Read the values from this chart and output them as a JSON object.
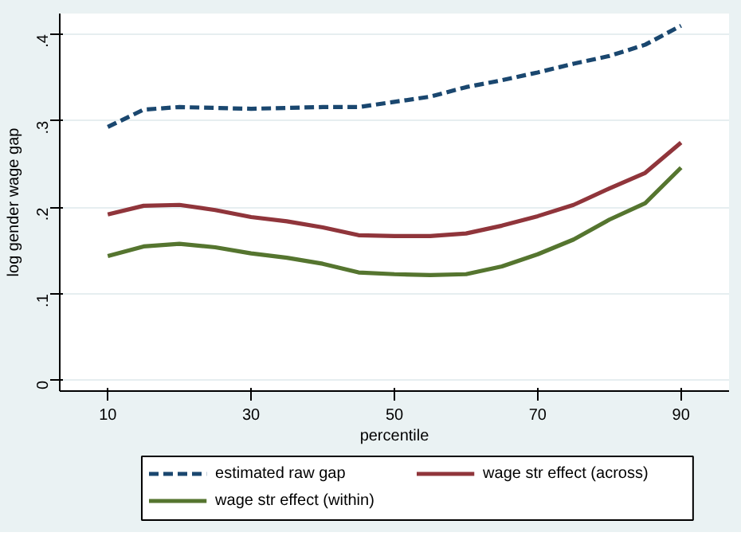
{
  "chart_data": {
    "type": "line",
    "xlabel": "percentile",
    "ylabel": "log gender wage gap",
    "x": [
      10,
      15,
      20,
      25,
      30,
      35,
      40,
      45,
      50,
      55,
      60,
      65,
      70,
      75,
      80,
      85,
      90
    ],
    "xlim": [
      3.3,
      96.7
    ],
    "xticks": [
      10,
      30,
      50,
      70,
      90
    ],
    "ylim": [
      -0.012,
      0.424
    ],
    "yticks": [
      {
        "value": 0,
        "label": "0"
      },
      {
        "value": 0.1,
        "label": ".1"
      },
      {
        "value": 0.2,
        "label": ".2"
      },
      {
        "value": 0.3,
        "label": ".3"
      },
      {
        "value": 0.4,
        "label": ".4"
      }
    ],
    "grid": "y",
    "legend": "bottom",
    "series": [
      {
        "name": "estimated raw gap",
        "color": "#1a476f",
        "line_style": "dashed",
        "values": [
          0.293,
          0.313,
          0.316,
          0.315,
          0.314,
          0.315,
          0.316,
          0.316,
          0.322,
          0.328,
          0.339,
          0.347,
          0.356,
          0.366,
          0.375,
          0.388,
          0.41
        ]
      },
      {
        "name": "wage str effect (across)",
        "color": "#90353b",
        "line_style": "solid",
        "values": [
          0.192,
          0.202,
          0.203,
          0.197,
          0.189,
          0.184,
          0.177,
          0.168,
          0.167,
          0.167,
          0.17,
          0.179,
          0.19,
          0.203,
          0.222,
          0.24,
          0.275
        ]
      },
      {
        "name": "wage str effect (within)",
        "color": "#55752f",
        "line_style": "solid",
        "values": [
          0.144,
          0.155,
          0.158,
          0.154,
          0.147,
          0.142,
          0.135,
          0.125,
          0.123,
          0.122,
          0.123,
          0.132,
          0.146,
          0.163,
          0.186,
          0.205,
          0.246
        ]
      }
    ]
  }
}
